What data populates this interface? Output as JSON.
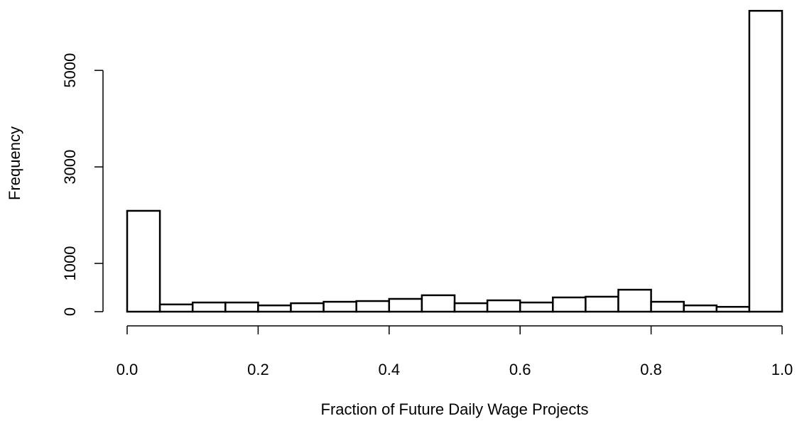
{
  "chart_data": {
    "type": "histogram",
    "x_label": "Fraction of Future Daily Wage Projects",
    "y_label": "Frequency",
    "bins": [
      0,
      0.05,
      0.1,
      0.15,
      0.2,
      0.25,
      0.3,
      0.35,
      0.4,
      0.45,
      0.5,
      0.55,
      0.6,
      0.65,
      0.7,
      0.75,
      0.8,
      0.85,
      0.9,
      0.95,
      1
    ],
    "counts": [
      2090,
      150,
      190,
      190,
      130,
      175,
      205,
      220,
      265,
      340,
      175,
      235,
      190,
      295,
      310,
      455,
      205,
      130,
      100,
      6235
    ],
    "color": "#ffffff",
    "edge_color": "#000000",
    "xlim": [
      0,
      1
    ],
    "ylim": [
      0,
      6400
    ],
    "xticks": [
      {
        "value": 0,
        "label": "0.0"
      },
      0.2,
      0.4,
      0.6,
      0.8,
      {
        "value": 1,
        "label": "1.0"
      }
    ],
    "yticks": [
      0,
      1000,
      3000,
      5000
    ]
  }
}
